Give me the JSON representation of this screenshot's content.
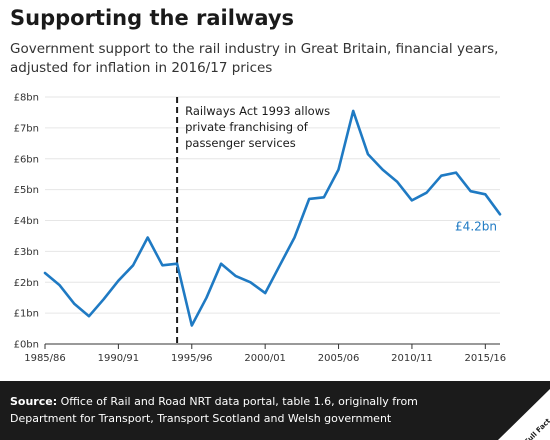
{
  "header": {
    "title": "Supporting the railways",
    "subtitle": "Government support to the rail industry in Great Britain, financial years, adjusted for inflation in 2016/17 prices"
  },
  "footer": {
    "source_label": "Source:",
    "source_text": "Office of Rail and Road NRT data portal, table 1.6, originally from Department for Transport, Transport Scotland and Welsh government",
    "logo_text": "Full Fact"
  },
  "colors": {
    "line": "#1f7ac3",
    "text": "#333333",
    "grid": "#e6e6e6",
    "footer_bg": "#1b1b1b"
  },
  "chart_data": {
    "type": "line",
    "title": "Supporting the railways",
    "subtitle": "Government support to the rail industry in Great Britain, financial years, adjusted for inflation in 2016/17 prices",
    "xlabel": "",
    "ylabel": "",
    "x_start_year": 1985,
    "xticks": [
      "1985/86",
      "1990/91",
      "1995/96",
      "2000/01",
      "2005/06",
      "2010/11",
      "2015/16"
    ],
    "yticks": [
      "£0bn",
      "£1bn",
      "£2bn",
      "£3bn",
      "£4bn",
      "£5bn",
      "£6bn",
      "£7bn",
      "£8bn"
    ],
    "ylim": [
      0,
      8
    ],
    "grid": "horizontal",
    "series": [
      {
        "name": "",
        "x": [
          "1985/86",
          "1986/87",
          "1987/88",
          "1988/89",
          "1989/90",
          "1990/91",
          "1991/92",
          "1992/93",
          "1993/94",
          "1994/95",
          "1995/96",
          "1996/97",
          "1997/98",
          "1998/99",
          "1999/00",
          "2000/01",
          "2001/02",
          "2002/03",
          "2003/04",
          "2004/05",
          "2005/06",
          "2006/07",
          "2007/08",
          "2008/09",
          "2009/10",
          "2010/11",
          "2011/12",
          "2012/13",
          "2013/14",
          "2014/15",
          "2015/16",
          "2016/17"
        ],
        "values": [
          2.3,
          1.9,
          1.3,
          0.9,
          1.45,
          2.05,
          2.55,
          3.45,
          2.55,
          2.6,
          0.6,
          1.5,
          2.6,
          2.2,
          2.0,
          1.65,
          2.55,
          3.45,
          4.7,
          4.75,
          5.65,
          7.55,
          6.15,
          5.65,
          5.25,
          4.65,
          4.9,
          5.45,
          5.55,
          4.95,
          4.85,
          4.2
        ]
      }
    ],
    "annotations": [
      {
        "text_lines": [
          "Railways Act 1993 allows",
          "private franchising of",
          "passenger services"
        ],
        "at_x": "1994/95",
        "style": "dashed vertical line"
      },
      {
        "text": "£4.2bn",
        "at_x": "2016/17"
      }
    ]
  }
}
